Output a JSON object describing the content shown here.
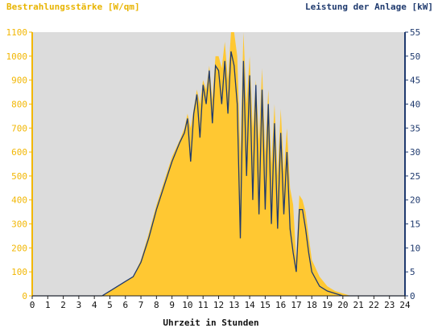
{
  "chart_data": {
    "type": "area",
    "title_left": "Bestrahlungsstärke [W/qm]",
    "title_right": "Leistung der Anlage [kW]",
    "xlabel": "Uhrzeit in Stunden",
    "xlim": [
      0,
      24
    ],
    "ylim_left": [
      0,
      1100
    ],
    "ylim_right": [
      0,
      55
    ],
    "x_ticks": [
      0,
      1,
      2,
      3,
      4,
      5,
      6,
      7,
      8,
      9,
      10,
      11,
      12,
      13,
      14,
      15,
      16,
      17,
      18,
      19,
      20,
      21,
      22,
      23,
      24
    ],
    "y_left_ticks": [
      0,
      100,
      200,
      300,
      400,
      500,
      600,
      700,
      800,
      900,
      1000,
      1100
    ],
    "y_right_ticks": [
      0,
      5,
      10,
      15,
      20,
      25,
      30,
      35,
      40,
      45,
      50,
      55
    ],
    "colors": {
      "plot_bg": "#dcdcdc",
      "irradiance_fill": "#ffc832",
      "power_line": "#1f3a6e",
      "left_axis": "#f2b705",
      "right_axis": "#1f3a6e"
    },
    "series": [
      {
        "axis": "left",
        "style": "area",
        "x": [
          0,
          4.5,
          5,
          5.5,
          6,
          6.5,
          7,
          7.5,
          8,
          8.5,
          9,
          9.5,
          9.8,
          10,
          10.2,
          10.4,
          10.6,
          10.8,
          11,
          11.2,
          11.4,
          11.6,
          11.8,
          12,
          12.2,
          12.4,
          12.6,
          12.8,
          13,
          13.2,
          13.4,
          13.6,
          13.8,
          14,
          14.2,
          14.4,
          14.6,
          14.8,
          15,
          15.2,
          15.4,
          15.6,
          15.8,
          16,
          16.2,
          16.4,
          16.6,
          16.8,
          17,
          17.2,
          17.4,
          17.6,
          17.8,
          18,
          18.5,
          19,
          19.5,
          20,
          20.5,
          21,
          24
        ],
        "y": [
          0,
          0,
          20,
          40,
          60,
          80,
          150,
          260,
          380,
          480,
          580,
          650,
          700,
          760,
          700,
          780,
          860,
          800,
          900,
          860,
          960,
          820,
          1000,
          1000,
          950,
          1060,
          900,
          1100,
          1100,
          1000,
          600,
          1100,
          800,
          1000,
          700,
          900,
          650,
          950,
          600,
          860,
          550,
          800,
          500,
          780,
          520,
          700,
          450,
          380,
          150,
          420,
          400,
          350,
          250,
          150,
          80,
          40,
          20,
          10,
          0,
          0,
          0
        ],
        "fill_opacity": 1
      },
      {
        "axis": "right",
        "style": "line",
        "x": [
          0,
          4.5,
          5,
          5.5,
          6,
          6.5,
          7,
          7.5,
          8,
          8.5,
          9,
          9.5,
          9.8,
          10,
          10.2,
          10.4,
          10.6,
          10.8,
          11,
          11.2,
          11.4,
          11.6,
          11.8,
          12,
          12.2,
          12.4,
          12.6,
          12.8,
          13,
          13.2,
          13.4,
          13.6,
          13.8,
          14,
          14.2,
          14.4,
          14.6,
          14.8,
          15,
          15.2,
          15.4,
          15.6,
          15.8,
          16,
          16.2,
          16.4,
          16.6,
          16.8,
          17,
          17.2,
          17.4,
          17.6,
          17.8,
          18,
          18.5,
          19,
          19.5,
          20,
          20.5,
          21,
          24
        ],
        "y": [
          0,
          0,
          1,
          2,
          3,
          4,
          7,
          12,
          18,
          23,
          28,
          32,
          34,
          37,
          28,
          38,
          42,
          33,
          44,
          40,
          47,
          36,
          48,
          47,
          40,
          49,
          38,
          51,
          48,
          40,
          12,
          49,
          25,
          46,
          20,
          44,
          17,
          43,
          18,
          40,
          15,
          36,
          14,
          34,
          17,
          30,
          14,
          9,
          5,
          18,
          18,
          14,
          9,
          5,
          2,
          1,
          0.5,
          0,
          0,
          0,
          0
        ]
      }
    ]
  }
}
